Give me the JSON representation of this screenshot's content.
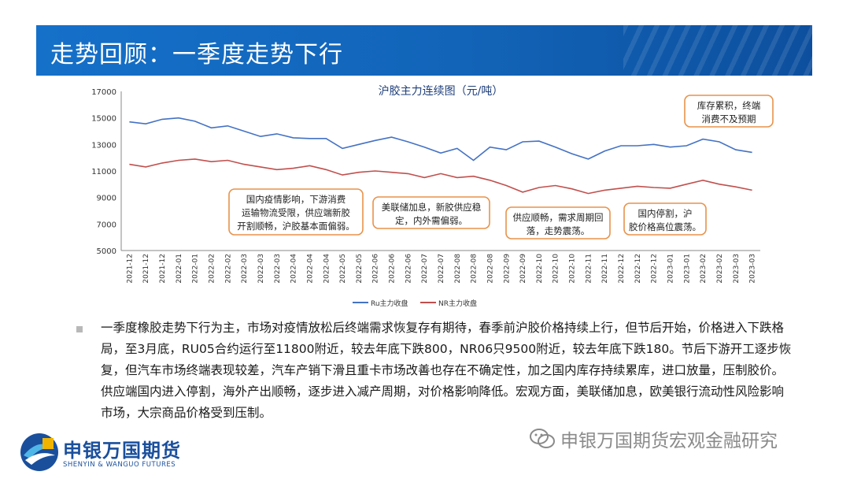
{
  "header": {
    "title": "走势回顾：一季度走势下行"
  },
  "chart_data": {
    "type": "line",
    "title": "沪胶主力连续图（元/吨）",
    "ylim": [
      5000,
      17000
    ],
    "yticks": [
      5000,
      7000,
      9000,
      11000,
      13000,
      15000,
      17000
    ],
    "x": [
      "2021-12",
      "2021-12",
      "2021-12",
      "2022-01",
      "2022-01",
      "2022-02",
      "2022-02",
      "2022-03",
      "2022-03",
      "2022-03",
      "2022-04",
      "2022-04",
      "2022-04",
      "2022-05",
      "2022-05",
      "2022-06",
      "2022-06",
      "2022-06",
      "2022-07",
      "2022-07",
      "2022-08",
      "2022-08",
      "2022-08",
      "2022-09",
      "2022-09",
      "2022-10",
      "2022-10",
      "2022-10",
      "2022-11",
      "2022-11",
      "2022-12",
      "2022-12",
      "2022-12",
      "2023-01",
      "2023-01",
      "2023-02",
      "2023-02",
      "2023-03",
      "2023-03"
    ],
    "series": [
      {
        "name": "Ru主力收盘",
        "color": "#4472c4",
        "values": [
          14700,
          14550,
          14900,
          15000,
          14750,
          14250,
          14400,
          14000,
          13600,
          13800,
          13500,
          13450,
          13450,
          12700,
          13000,
          13300,
          13550,
          13200,
          12800,
          12350,
          12700,
          11800,
          12800,
          12600,
          13200,
          13250,
          12800,
          12300,
          11900,
          12500,
          12900,
          12900,
          13000,
          12800,
          12900,
          13400,
          13200,
          12600,
          12400
        ]
      },
      {
        "name": "NR主力收盘",
        "color": "#c0504d",
        "values": [
          11500,
          11300,
          11600,
          11800,
          11900,
          11700,
          11800,
          11500,
          11300,
          11100,
          11200,
          11400,
          11100,
          10700,
          10900,
          11000,
          10900,
          10800,
          10500,
          10800,
          10500,
          10600,
          10300,
          9900,
          9400,
          9750,
          9900,
          9650,
          9300,
          9550,
          9700,
          9850,
          9750,
          9700,
          10000,
          10300,
          10000,
          9800,
          9550
        ]
      }
    ],
    "annotations": [
      {
        "text": "国内疫情影响，下游消费运输物流受限，供应端新胶开割顺畅，沪胶基本面偏弱。"
      },
      {
        "text": "美联储加息，新胶供应稳定，内外需偏弱。"
      },
      {
        "text": "供应顺畅，需求周期回落，走势震荡。"
      },
      {
        "text": "国内停割，沪胶价格高位震荡。"
      },
      {
        "text": "库存累积，终端消费不及预期"
      }
    ],
    "legend_position": "bottom",
    "colors": {
      "annotation_border": "#e8924a"
    }
  },
  "body": {
    "paragraph": "一季度橡胶走势下行为主，市场对疫情放松后终端需求恢复存有期待，春季前沪胶价格持续上行，但节后开始，价格进入下跌格局，至3月底，RU05合约运行至11800附近，较去年底下跌800，NR06只9500附近，较去年底下跌180。节后下游开工逐步恢复，但汽车市场终端表现较差，汽车产销下滑且重卡市场改善也存在不确定性，加之国内库存持续累库，进口放量，压制胶价。供应端国内进入停割，海外产出顺畅，逐步进入减产周期，对价格影响降低。宏观方面，美联储加息，欧美银行流动性风险影响市场，大宗商品价格受到压制。"
  },
  "footer": {
    "logo_cn": "申银万国期货",
    "logo_en": "SHENYIN & WANGUO FUTURES",
    "watermark": "申银万国期货宏观金融研究"
  }
}
